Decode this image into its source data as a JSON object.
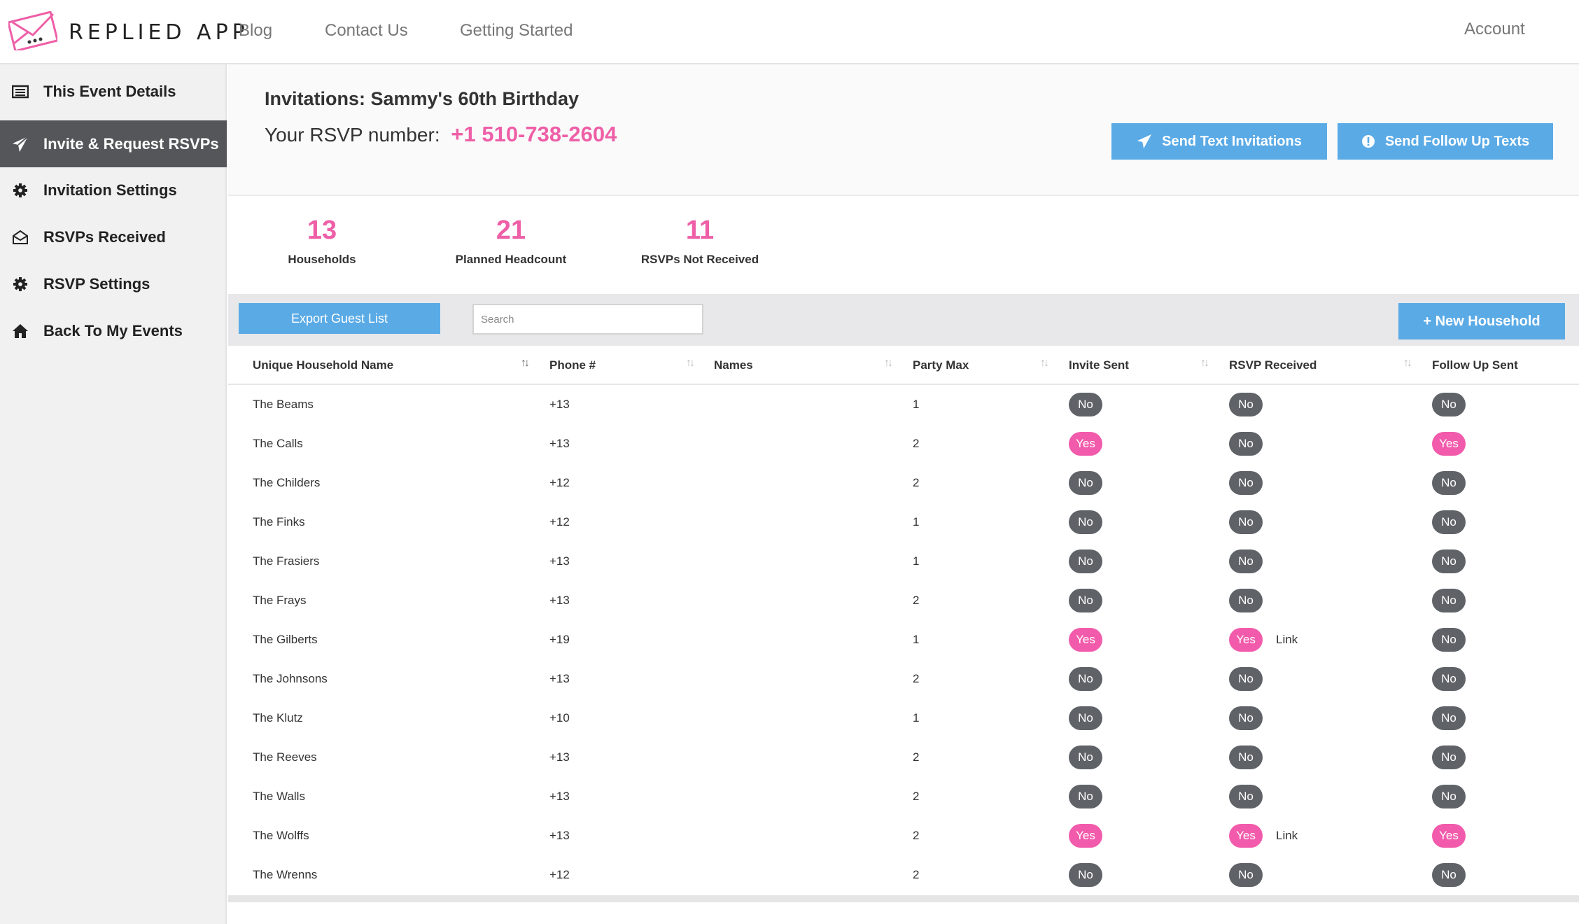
{
  "brand": {
    "name": "REPLIED APP"
  },
  "nav": {
    "blog": "Blog",
    "contact": "Contact Us",
    "getting_started": "Getting Started",
    "account": "Account"
  },
  "sidebar": {
    "items": [
      {
        "label": "This Event Details",
        "icon": "list-icon"
      },
      {
        "label": "Invite & Request RSVPs",
        "icon": "paper-plane-icon"
      },
      {
        "label": "Invitation Settings",
        "icon": "gear-icon"
      },
      {
        "label": "RSVPs Received",
        "icon": "envelope-open-icon"
      },
      {
        "label": "RSVP Settings",
        "icon": "gear-icon"
      },
      {
        "label": "Back To My Events",
        "icon": "home-icon"
      }
    ]
  },
  "header": {
    "title": "Invitations: Sammy's 60th Birthday",
    "rsvp_label": "Your RSVP number:",
    "rsvp_number": "+1 510-738-2604",
    "send_button": "Send Text Invitations",
    "follow_button": "Send Follow Up Texts"
  },
  "stats": [
    {
      "value": "13",
      "label": "Households"
    },
    {
      "value": "21",
      "label": "Planned Headcount"
    },
    {
      "value": "11",
      "label": "RSVPs Not Received"
    }
  ],
  "toolbar": {
    "export": "Export Guest List",
    "search_placeholder": "Search",
    "new_household": "+ New Household"
  },
  "table": {
    "columns": [
      "Unique Household Name",
      "Phone #",
      "Names",
      "Party Max",
      "Invite Sent",
      "RSVP Received",
      "Follow Up Sent"
    ],
    "link_label": "Link",
    "rows": [
      {
        "name": "The Beams",
        "phone": "+13",
        "names": "",
        "max": "1",
        "invite": "No",
        "rsvp": "No",
        "link": "",
        "follow": "No"
      },
      {
        "name": "The Calls",
        "phone": "+13",
        "names": "",
        "max": "2",
        "invite": "Yes",
        "rsvp": "No",
        "link": "",
        "follow": "Yes"
      },
      {
        "name": "The Childers",
        "phone": "+12",
        "names": "",
        "max": "2",
        "invite": "No",
        "rsvp": "No",
        "link": "",
        "follow": "No"
      },
      {
        "name": "The Finks",
        "phone": "+12",
        "names": "",
        "max": "1",
        "invite": "No",
        "rsvp": "No",
        "link": "",
        "follow": "No"
      },
      {
        "name": "The Frasiers",
        "phone": "+13",
        "names": "",
        "max": "1",
        "invite": "No",
        "rsvp": "No",
        "link": "",
        "follow": "No"
      },
      {
        "name": "The Frays",
        "phone": "+13",
        "names": "",
        "max": "2",
        "invite": "No",
        "rsvp": "No",
        "link": "",
        "follow": "No"
      },
      {
        "name": "The Gilberts",
        "phone": "+19",
        "names": "",
        "max": "1",
        "invite": "Yes",
        "rsvp": "Yes",
        "link": "Link",
        "follow": "No"
      },
      {
        "name": "The Johnsons",
        "phone": "+13",
        "names": "",
        "max": "2",
        "invite": "No",
        "rsvp": "No",
        "link": "",
        "follow": "No"
      },
      {
        "name": "The Klutz",
        "phone": "+10",
        "names": "",
        "max": "1",
        "invite": "No",
        "rsvp": "No",
        "link": "",
        "follow": "No"
      },
      {
        "name": "The Reeves",
        "phone": "+13",
        "names": "",
        "max": "2",
        "invite": "No",
        "rsvp": "No",
        "link": "",
        "follow": "No"
      },
      {
        "name": "The Walls",
        "phone": "+13",
        "names": "",
        "max": "2",
        "invite": "No",
        "rsvp": "No",
        "link": "",
        "follow": "No"
      },
      {
        "name": "The Wolffs",
        "phone": "+13",
        "names": "",
        "max": "2",
        "invite": "Yes",
        "rsvp": "Yes",
        "link": "Link",
        "follow": "Yes"
      },
      {
        "name": "The Wrenns",
        "phone": "+12",
        "names": "",
        "max": "2",
        "invite": "No",
        "rsvp": "No",
        "link": "",
        "follow": "No"
      }
    ]
  },
  "colors": {
    "accent_pink": "#ee5fa7",
    "button_blue": "#5aaae6",
    "pill_gray": "#5f6368",
    "sidebar_active": "#555659"
  }
}
